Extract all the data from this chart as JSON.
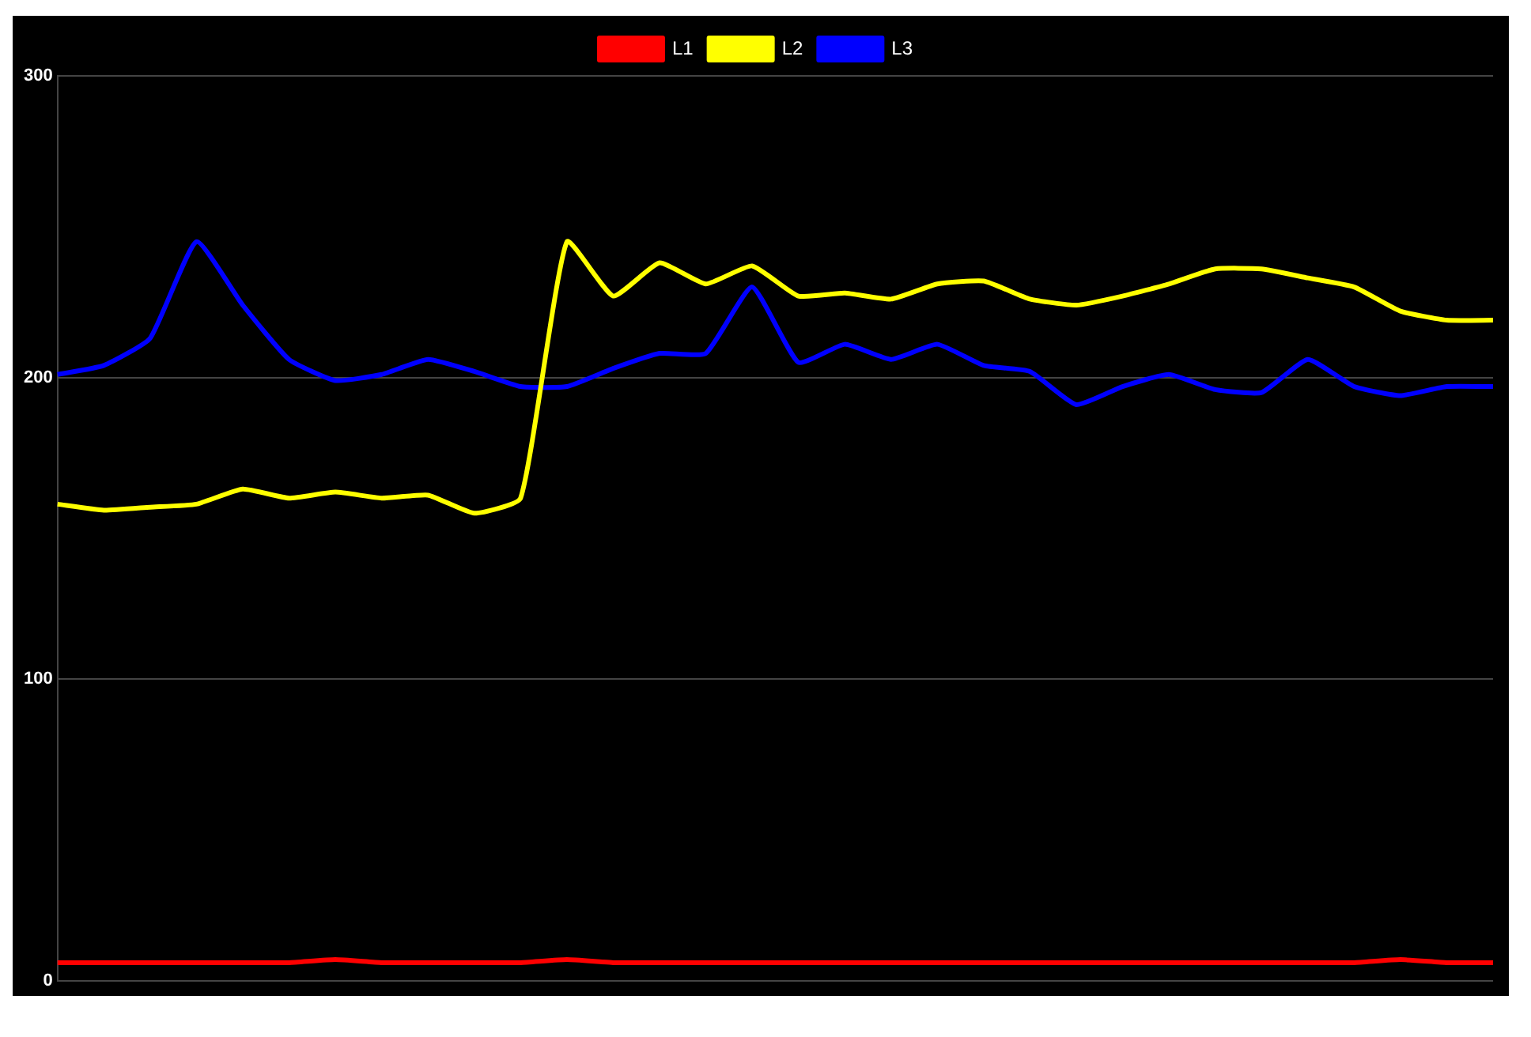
{
  "chart_data": {
    "type": "line",
    "categories": [
      null,
      null,
      null,
      null,
      null,
      null,
      null,
      null,
      null,
      null,
      null,
      null,
      null,
      null,
      null,
      null,
      null,
      null,
      null,
      null,
      null,
      null,
      null,
      null,
      null,
      null,
      null,
      null,
      null,
      null,
      null,
      null
    ],
    "series": [
      {
        "name": "L1",
        "color": "#ff0000",
        "values": [
          6,
          6,
          6,
          6,
          6,
          6,
          7,
          6,
          6,
          6,
          6,
          7,
          6,
          6,
          6,
          6,
          6,
          6,
          6,
          6,
          6,
          6,
          6,
          6,
          6,
          6,
          6,
          6,
          6,
          7,
          6,
          6
        ]
      },
      {
        "name": "L2",
        "color": "#ffff00",
        "values": [
          158,
          156,
          157,
          158,
          163,
          160,
          162,
          160,
          161,
          155,
          160,
          245,
          227,
          238,
          231,
          237,
          227,
          228,
          226,
          231,
          232,
          226,
          224,
          227,
          231,
          236,
          236,
          233,
          230,
          222,
          219,
          219
        ]
      },
      {
        "name": "L3",
        "color": "#0000ff",
        "values": [
          201,
          204,
          213,
          245,
          224,
          206,
          199,
          201,
          206,
          202,
          197,
          197,
          203,
          208,
          208,
          230,
          205,
          211,
          206,
          211,
          204,
          202,
          191,
          197,
          201,
          196,
          195,
          206,
          197,
          194,
          197,
          197
        ]
      }
    ],
    "ylim": [
      0,
      300
    ],
    "yticks": [
      0,
      100,
      200,
      300
    ],
    "grid": "y",
    "legend": "top",
    "marker": "none",
    "line_style": "solid",
    "tick_labels": "y"
  }
}
